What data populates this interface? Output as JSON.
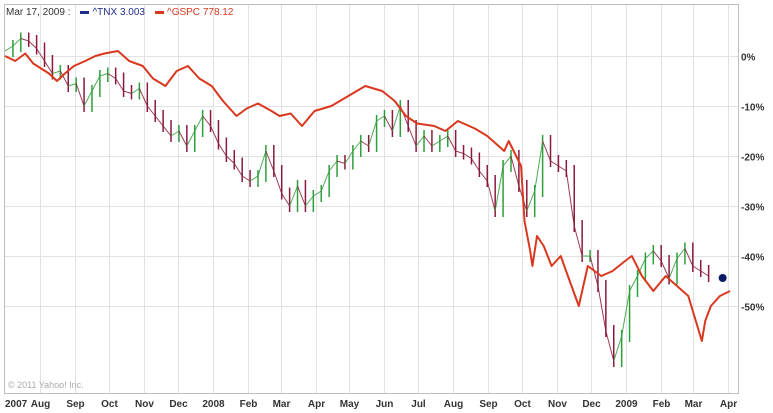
{
  "legend": {
    "date": "Mar 17, 2009 :",
    "tnx_symbol": "^TNX",
    "tnx_value": "3.003",
    "gspc_symbol": "^GSPC",
    "gspc_value": "778.12"
  },
  "copyright": "© 2011 Yahoo! Inc.",
  "colors": {
    "tnx": "#1f2d8a",
    "gspc": "#d9381e",
    "candle_up": "#2e9e3a",
    "candle_down": "#8b1a3a",
    "grid": "#e2e2e2",
    "frame": "#bfbfbf",
    "marker": "#0b1a66"
  },
  "chart_data": {
    "type": "line",
    "ylim": [
      -60,
      10
    ],
    "y_ticks": [
      0,
      -10,
      -20,
      -30,
      -40,
      -50
    ],
    "y_tick_labels": [
      "0%",
      "-10%",
      "-20%",
      "-30%",
      "-40%",
      "-50%"
    ],
    "y_axis_side": "right",
    "grid": true,
    "legend_placement": "top-left",
    "x_labels": [
      "2007",
      "Aug",
      "Sep",
      "Oct",
      "Nov",
      "Dec",
      "2008",
      "Feb",
      "Mar",
      "Apr",
      "May",
      "Jun",
      "Jul",
      "Aug",
      "Sep",
      "Oct",
      "Nov",
      "Dec",
      "2009",
      "Feb",
      "Mar",
      "Apr"
    ],
    "x_label_dates": [
      "2007-07-01",
      "2007-08-01",
      "2007-09-01",
      "2007-10-01",
      "2007-11-01",
      "2007-12-01",
      "2008-01-01",
      "2008-02-01",
      "2008-03-01",
      "2008-04-01",
      "2008-05-01",
      "2008-06-01",
      "2008-07-01",
      "2008-08-01",
      "2008-09-01",
      "2008-10-01",
      "2008-11-01",
      "2008-12-01",
      "2009-01-01",
      "2009-02-01",
      "2009-03-01",
      "2009-04-01"
    ],
    "series": [
      {
        "name": "^GSPC",
        "style": "line",
        "x": [
          "2007-07-01",
          "2007-07-10",
          "2007-07-19",
          "2007-07-26",
          "2007-08-02",
          "2007-08-09",
          "2007-08-16",
          "2007-08-23",
          "2007-08-31",
          "2007-09-10",
          "2007-09-19",
          "2007-09-27",
          "2007-10-09",
          "2007-10-19",
          "2007-10-31",
          "2007-11-09",
          "2007-11-20",
          "2007-11-30",
          "2007-12-10",
          "2007-12-20",
          "2007-12-31",
          "2008-01-10",
          "2008-01-22",
          "2008-01-31",
          "2008-02-10",
          "2008-02-22",
          "2008-02-29",
          "2008-03-10",
          "2008-03-20",
          "2008-03-31",
          "2008-04-15",
          "2008-04-30",
          "2008-05-15",
          "2008-05-30",
          "2008-06-10",
          "2008-06-20",
          "2008-06-30",
          "2008-07-15",
          "2008-07-25",
          "2008-08-05",
          "2008-08-20",
          "2008-08-31",
          "2008-09-15",
          "2008-09-19",
          "2008-09-30",
          "2008-10-03",
          "2008-10-08",
          "2008-10-10",
          "2008-10-14",
          "2008-10-20",
          "2008-10-27",
          "2008-11-04",
          "2008-11-12",
          "2008-11-20",
          "2008-11-28",
          "2008-12-10",
          "2008-12-20",
          "2008-12-31",
          "2009-01-06",
          "2009-01-15",
          "2009-01-25",
          "2009-02-05",
          "2009-02-15",
          "2009-02-25",
          "2009-03-01",
          "2009-03-09",
          "2009-03-12",
          "2009-03-17",
          "2009-03-25",
          "2009-04-03"
        ],
        "values": [
          0,
          -1,
          0.5,
          -1.5,
          -2.5,
          -3.5,
          -5,
          -3.5,
          -2,
          -1,
          0,
          0.5,
          1,
          -1,
          -2,
          -4.5,
          -6,
          -3,
          -2,
          -4.5,
          -6,
          -9,
          -12,
          -10.5,
          -9.5,
          -11,
          -12,
          -11.5,
          -14,
          -11,
          -10,
          -8,
          -6,
          -7,
          -9,
          -12,
          -13.5,
          -14,
          -15,
          -13,
          -14.5,
          -16,
          -19,
          -17,
          -22,
          -33,
          -39,
          -42,
          -36,
          -38,
          -42,
          -40,
          -45,
          -50,
          -42,
          -44,
          -43,
          -41,
          -40,
          -44,
          -47,
          -44,
          -46,
          -48,
          -51,
          -57,
          -53,
          -50,
          -48,
          -47
        ]
      },
      {
        "name": "^TNX",
        "style": "candlestick",
        "x": [
          "2007-07-01",
          "2007-07-08",
          "2007-07-15",
          "2007-07-22",
          "2007-07-29",
          "2007-08-05",
          "2007-08-12",
          "2007-08-19",
          "2007-08-26",
          "2007-09-02",
          "2007-09-09",
          "2007-09-16",
          "2007-09-23",
          "2007-09-30",
          "2007-10-07",
          "2007-10-14",
          "2007-10-21",
          "2007-10-28",
          "2007-11-04",
          "2007-11-11",
          "2007-11-18",
          "2007-11-25",
          "2007-12-02",
          "2007-12-09",
          "2007-12-16",
          "2007-12-23",
          "2007-12-30",
          "2008-01-06",
          "2008-01-13",
          "2008-01-20",
          "2008-01-27",
          "2008-02-03",
          "2008-02-10",
          "2008-02-17",
          "2008-02-24",
          "2008-03-02",
          "2008-03-09",
          "2008-03-16",
          "2008-03-23",
          "2008-03-30",
          "2008-04-06",
          "2008-04-13",
          "2008-04-20",
          "2008-04-27",
          "2008-05-04",
          "2008-05-11",
          "2008-05-18",
          "2008-05-25",
          "2008-06-01",
          "2008-06-08",
          "2008-06-15",
          "2008-06-22",
          "2008-06-29",
          "2008-07-06",
          "2008-07-13",
          "2008-07-20",
          "2008-07-27",
          "2008-08-03",
          "2008-08-10",
          "2008-08-17",
          "2008-08-24",
          "2008-08-31",
          "2008-09-07",
          "2008-09-14",
          "2008-09-21",
          "2008-09-28",
          "2008-10-05",
          "2008-10-12",
          "2008-10-19",
          "2008-10-26",
          "2008-11-02",
          "2008-11-09",
          "2008-11-16",
          "2008-11-23",
          "2008-11-30",
          "2008-12-07",
          "2008-12-14",
          "2008-12-21",
          "2008-12-28",
          "2009-01-04",
          "2009-01-11",
          "2009-01-18",
          "2009-01-25",
          "2009-02-01",
          "2009-02-08",
          "2009-02-15",
          "2009-02-22",
          "2009-03-01",
          "2009-03-08",
          "2009-03-15"
        ],
        "values": [
          1,
          2,
          3.5,
          3,
          1.5,
          -1,
          -3.5,
          -3,
          -6,
          -5.5,
          -10,
          -7,
          -4,
          -3.5,
          -4.5,
          -7,
          -7.5,
          -6.5,
          -10,
          -12,
          -14,
          -16,
          -15,
          -18,
          -15,
          -12,
          -14,
          -17.5,
          -20,
          -21.5,
          -24,
          -25,
          -24,
          -19,
          -23,
          -27.5,
          -30,
          -26,
          -30,
          -28,
          -27,
          -23,
          -21,
          -21.5,
          -19,
          -17,
          -18,
          -13,
          -12,
          -15,
          -10,
          -14,
          -18,
          -16,
          -18,
          -17,
          -16,
          -19,
          -19.5,
          -20.5,
          -23,
          -25,
          -31,
          -22,
          -20,
          -26,
          -31,
          -27,
          -17,
          -21,
          -22,
          -23,
          -34,
          -40,
          -40,
          -46,
          -55,
          -61,
          -56,
          -47,
          -44,
          -40.5,
          -39,
          -41,
          -44.5,
          -40.5,
          -38.5,
          -42,
          -43,
          -44
        ]
      }
    ]
  }
}
